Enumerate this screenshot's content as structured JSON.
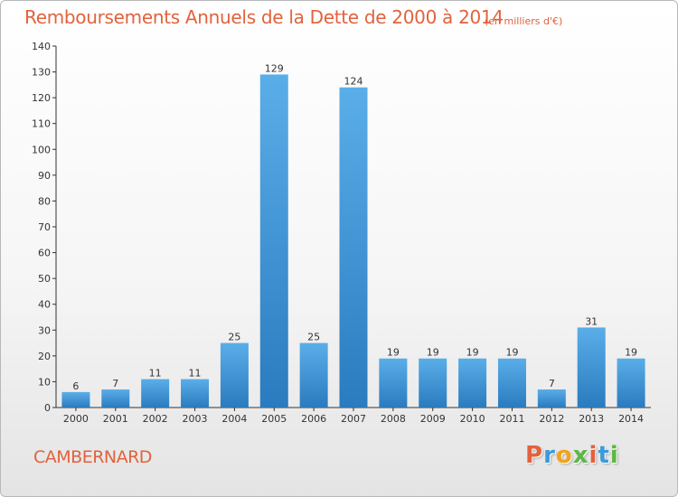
{
  "header": {
    "title": "Remboursements Annuels de la Dette de 2000 à 2014",
    "unit": "(en milliers d'€)"
  },
  "footer": {
    "place": "CAMBERNARD",
    "logo": "Proxiti"
  },
  "colors": {
    "accent": "#e2623c",
    "bar_light": "#5aaee8",
    "bar_dark": "#2a7bbf",
    "logo_letters": [
      "#e2623c",
      "#3b9ad9",
      "#f3a21b",
      "#5ab843",
      "#e2623c",
      "#3b9ad9",
      "#5ab843"
    ]
  },
  "chart_data": {
    "type": "bar",
    "title": "Remboursements Annuels de la Dette de 2000 à 2014",
    "subtitle": "(en milliers d'€)",
    "xlabel": "",
    "ylabel": "",
    "categories": [
      "2000",
      "2001",
      "2002",
      "2003",
      "2004",
      "2005",
      "2006",
      "2007",
      "2008",
      "2009",
      "2010",
      "2011",
      "2012",
      "2013",
      "2014"
    ],
    "values": [
      6,
      7,
      11,
      11,
      25,
      129,
      25,
      124,
      19,
      19,
      19,
      19,
      7,
      31,
      19
    ],
    "ylim": [
      0,
      140
    ],
    "yticks": [
      0,
      10,
      20,
      30,
      40,
      50,
      60,
      70,
      80,
      90,
      100,
      110,
      120,
      130,
      140
    ],
    "grid": false,
    "legend": "none"
  }
}
